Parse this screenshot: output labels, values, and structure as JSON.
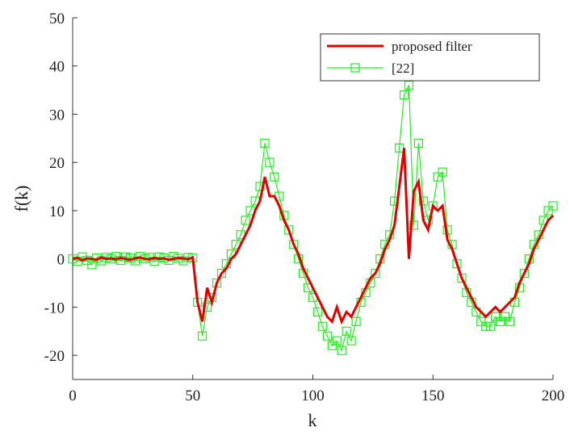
{
  "chart_data": {
    "type": "line",
    "xlabel": "k",
    "ylabel": "f(k)",
    "x": [
      0,
      2,
      4,
      6,
      8,
      10,
      12,
      14,
      16,
      18,
      20,
      22,
      24,
      26,
      28,
      30,
      32,
      34,
      36,
      38,
      40,
      42,
      44,
      46,
      48,
      50,
      52,
      54,
      56,
      58,
      60,
      62,
      64,
      66,
      68,
      70,
      72,
      74,
      76,
      78,
      80,
      82,
      84,
      86,
      88,
      90,
      92,
      94,
      96,
      98,
      100,
      102,
      104,
      106,
      108,
      110,
      112,
      114,
      116,
      118,
      120,
      122,
      124,
      126,
      128,
      130,
      132,
      134,
      136,
      138,
      140,
      142,
      144,
      146,
      148,
      150,
      152,
      154,
      156,
      158,
      160,
      162,
      164,
      166,
      168,
      170,
      172,
      174,
      176,
      178,
      180,
      182,
      184,
      186,
      188,
      190,
      192,
      194,
      196,
      198,
      200
    ],
    "series": [
      {
        "name": "proposed filter",
        "color": "#e00000",
        "marker": "none",
        "values": [
          0,
          0.2,
          -0.3,
          0.1,
          0,
          -0.2,
          0.3,
          0,
          0.1,
          -0.1,
          0.2,
          0,
          -0.2,
          0.1,
          0.3,
          0,
          -0.1,
          0.2,
          0,
          0.1,
          -0.2,
          0,
          0.2,
          0.1,
          -0.1,
          0.3,
          -9,
          -13,
          -6,
          -9,
          -5,
          -3,
          -2,
          0,
          1,
          3,
          5,
          7,
          10,
          12,
          17,
          13,
          13,
          11,
          8,
          6,
          3,
          1,
          -2,
          -4,
          -6,
          -8,
          -10,
          -12,
          -13,
          -10,
          -13,
          -11,
          -12,
          -10,
          -8,
          -6,
          -4,
          -3,
          -1,
          2,
          4,
          7,
          15,
          23,
          0,
          14,
          16,
          8,
          6,
          11,
          10,
          11,
          4,
          2,
          -1,
          -4,
          -6,
          -8,
          -10,
          -11,
          -12,
          -11,
          -10,
          -11,
          -10,
          -9,
          -8,
          -5,
          -3,
          -1,
          2,
          4,
          6,
          8,
          9
        ]
      },
      {
        "name": "[22]",
        "color": "#22ee22",
        "marker": "square",
        "values": [
          0,
          -0.5,
          0.4,
          -0.3,
          -1.2,
          0.2,
          -0.4,
          0.3,
          0,
          0.5,
          -0.3,
          0.4,
          0.2,
          -0.4,
          0.5,
          0,
          0.3,
          -0.5,
          0.4,
          0.2,
          -0.3,
          0.5,
          0.1,
          -0.4,
          0.3,
          0.2,
          -9,
          -16,
          -10,
          -8,
          -5,
          -3,
          -1,
          1,
          3,
          5,
          8,
          10,
          12,
          15,
          24,
          20,
          17,
          13,
          9,
          6,
          3,
          0,
          -3,
          -6,
          -8,
          -11,
          -14,
          -16,
          -18,
          -17,
          -19,
          -15,
          -17,
          -13,
          -9,
          -7,
          -5,
          -3,
          0,
          3,
          5,
          12,
          23,
          34,
          36,
          7,
          24,
          12,
          8,
          11,
          17,
          18,
          6,
          3,
          -1,
          -4,
          -7,
          -9,
          -11,
          -13,
          -14,
          -14,
          -12,
          -13,
          -12,
          -13,
          -9,
          -6,
          -3,
          0,
          3,
          5,
          8,
          10,
          11
        ]
      }
    ],
    "xlim": [
      0,
      200
    ],
    "xticks": [
      0,
      50,
      100,
      150,
      200
    ],
    "ylim": [
      -25,
      50
    ],
    "yticks": [
      -20,
      -10,
      0,
      10,
      20,
      30,
      40,
      50
    ],
    "legend": "upper right"
  }
}
